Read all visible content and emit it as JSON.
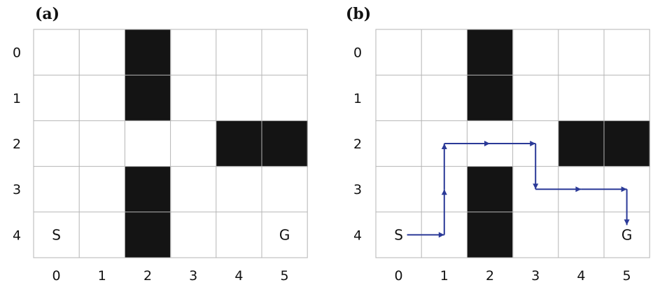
{
  "panels": [
    {
      "label": "(a)",
      "rows": [
        "0",
        "1",
        "2",
        "3",
        "4"
      ],
      "cols": [
        "0",
        "1",
        "2",
        "3",
        "4",
        "5"
      ],
      "walls": [
        [
          0,
          2
        ],
        [
          1,
          2
        ],
        [
          3,
          2
        ],
        [
          4,
          2
        ],
        [
          2,
          4
        ],
        [
          2,
          5
        ]
      ],
      "start": {
        "row": 4,
        "col": 0,
        "text": "S"
      },
      "goal": {
        "row": 4,
        "col": 5,
        "text": "G"
      },
      "path": []
    },
    {
      "label": "(b)",
      "rows": [
        "0",
        "1",
        "2",
        "3",
        "4"
      ],
      "cols": [
        "0",
        "1",
        "2",
        "3",
        "4",
        "5"
      ],
      "walls": [
        [
          0,
          2
        ],
        [
          1,
          2
        ],
        [
          3,
          2
        ],
        [
          4,
          2
        ],
        [
          2,
          4
        ],
        [
          2,
          5
        ]
      ],
      "start": {
        "row": 4,
        "col": 0,
        "text": "S"
      },
      "goal": {
        "row": 4,
        "col": 5,
        "text": "G"
      },
      "path": [
        [
          4,
          0
        ],
        [
          4,
          1
        ],
        [
          3,
          1
        ],
        [
          2,
          1
        ],
        [
          2,
          2
        ],
        [
          2,
          3
        ],
        [
          3,
          3
        ],
        [
          3,
          4
        ],
        [
          3,
          5
        ],
        [
          4,
          5
        ]
      ]
    }
  ],
  "colors": {
    "wall": "#141414",
    "grid": "#b5b5b5",
    "path": "#2b3a98",
    "background": "#ffffff"
  }
}
